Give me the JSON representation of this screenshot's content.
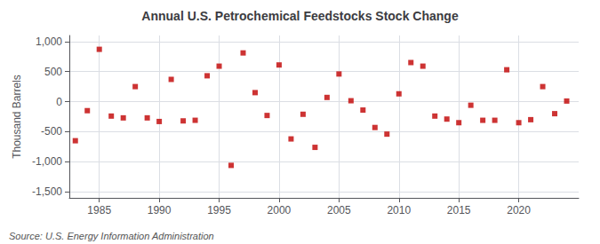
{
  "chart_data": {
    "type": "scatter",
    "title": "Annual U.S. Petrochemical Feedstocks Stock Change",
    "ylabel": "Thousand Barrels",
    "annotations": [
      "Source: U.S. Energy Information Administration"
    ],
    "x": [
      1983,
      1984,
      1985,
      1986,
      1987,
      1988,
      1989,
      1990,
      1991,
      1992,
      1993,
      1994,
      1995,
      1996,
      1997,
      1998,
      1999,
      2000,
      2001,
      2002,
      2003,
      2004,
      2005,
      2006,
      2007,
      2008,
      2009,
      2010,
      2011,
      2012,
      2013,
      2014,
      2015,
      2016,
      2017,
      2018,
      2019,
      2020,
      2021,
      2022,
      2023,
      2024
    ],
    "values": [
      -650,
      -150,
      870,
      -240,
      -270,
      250,
      -270,
      -330,
      370,
      -320,
      -310,
      430,
      590,
      -1060,
      810,
      150,
      -230,
      610,
      -620,
      -210,
      -760,
      70,
      460,
      15,
      -140,
      -430,
      -540,
      130,
      650,
      590,
      -240,
      -290,
      -350,
      -60,
      -310,
      -310,
      530,
      -350,
      -300,
      250,
      -200,
      10
    ],
    "color": "#c00000",
    "marker": "square",
    "xlim": [
      1982.5,
      2025
    ],
    "xticks": [
      1985,
      1990,
      1995,
      2000,
      2005,
      2010,
      2015,
      2020
    ],
    "ylim": [
      -1600,
      1100
    ],
    "yticks": [
      {
        "value": -1500,
        "label": "-1,500"
      },
      {
        "value": -1000,
        "label": "-1,000"
      },
      -500,
      0,
      500,
      {
        "value": 1000,
        "label": "1,000"
      }
    ],
    "grid": true
  }
}
